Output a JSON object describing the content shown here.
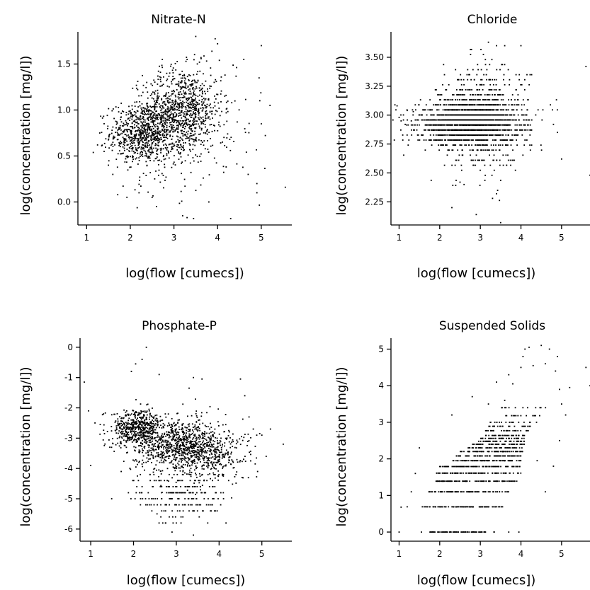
{
  "chart_data": [
    {
      "type": "scatter",
      "title": "Nitrate-N",
      "xlabel": "log(flow [cumecs])",
      "ylabel": "log(concentration [mg/l])",
      "xlim": [
        0.8,
        5.7
      ],
      "ylim": [
        -0.25,
        1.85
      ],
      "xticks": [
        1,
        2,
        3,
        4,
        5
      ],
      "yticks": [
        0.0,
        0.5,
        1.0,
        1.5
      ],
      "ytick_labels": [
        "0.0",
        "0.5",
        "1.0",
        "1.5"
      ],
      "grid": false,
      "clusters": [
        {
          "cx": 2.3,
          "cy": 0.75,
          "sx": 0.38,
          "sy": 0.16,
          "n": 700
        },
        {
          "cx": 3.2,
          "cy": 1.02,
          "sx": 0.45,
          "sy": 0.22,
          "n": 850
        },
        {
          "cx": 2.8,
          "cy": 0.6,
          "sx": 0.55,
          "sy": 0.25,
          "n": 180
        },
        {
          "cx": 4.3,
          "cy": 0.95,
          "sx": 0.45,
          "sy": 0.4,
          "n": 45
        }
      ],
      "extra_points": [
        [
          1.3,
          0.75
        ],
        [
          1.25,
          0.62
        ],
        [
          1.4,
          0.55
        ],
        [
          1.5,
          0.4
        ],
        [
          1.6,
          0.3
        ],
        [
          2.2,
          0.1
        ],
        [
          2.5,
          0.05
        ],
        [
          2.6,
          -0.05
        ],
        [
          3.2,
          -0.15
        ],
        [
          3.3,
          -0.17
        ],
        [
          3.45,
          -0.18
        ],
        [
          4.3,
          -0.18
        ],
        [
          3.8,
          0.0
        ],
        [
          4.7,
          0.3
        ],
        [
          4.9,
          0.2
        ],
        [
          5.2,
          1.05
        ],
        [
          5.0,
          1.7
        ],
        [
          4.0,
          1.72
        ],
        [
          3.5,
          1.8
        ],
        [
          5.55,
          0.16
        ],
        [
          4.9,
          0.1
        ],
        [
          5.0,
          0.85
        ],
        [
          4.6,
          1.55
        ]
      ]
    },
    {
      "type": "scatter",
      "title": "Chloride",
      "xlabel": "log(flow [cumecs])",
      "ylabel": "log(concentration [mg/l])",
      "xlim": [
        0.8,
        5.7
      ],
      "ylim": [
        2.05,
        3.72
      ],
      "xticks": [
        1,
        2,
        3,
        4,
        5
      ],
      "yticks": [
        2.25,
        2.5,
        2.75,
        3.0,
        3.25,
        3.5
      ],
      "ytick_labels": [
        "2.25",
        "2.50",
        "2.75",
        "3.00",
        "3.25",
        "3.50"
      ],
      "grid": false,
      "quantize": 0.0435,
      "clusters": [
        {
          "cx": 2.7,
          "cy": 2.93,
          "sx": 0.6,
          "sy": 0.09,
          "n": 1600
        },
        {
          "cx": 3.1,
          "cy": 2.98,
          "sx": 0.55,
          "sy": 0.22,
          "n": 650
        }
      ],
      "extra_points": [
        [
          0.95,
          3.08
        ],
        [
          1.0,
          2.98
        ],
        [
          1.05,
          2.95
        ],
        [
          1.2,
          3.04
        ],
        [
          1.15,
          2.92
        ],
        [
          1.3,
          2.95
        ],
        [
          1.35,
          3.03
        ],
        [
          5.6,
          3.42
        ],
        [
          5.7,
          2.48
        ],
        [
          4.9,
          2.85
        ],
        [
          4.8,
          2.92
        ],
        [
          5.0,
          2.62
        ],
        [
          3.2,
          3.63
        ],
        [
          3.4,
          3.6
        ],
        [
          3.6,
          3.6
        ],
        [
          4.0,
          3.6
        ],
        [
          2.3,
          2.2
        ],
        [
          2.9,
          2.14
        ],
        [
          3.5,
          2.07
        ],
        [
          3.3,
          2.28
        ],
        [
          3.4,
          2.32
        ],
        [
          2.6,
          2.4
        ],
        [
          2.5,
          2.42
        ]
      ]
    },
    {
      "type": "scatter",
      "title": "Phosphate-P",
      "xlabel": "log(flow [cumecs])",
      "ylabel": "log(concentration [mg/l])",
      "xlim": [
        0.75,
        5.7
      ],
      "ylim": [
        -6.4,
        0.3
      ],
      "xticks": [
        1,
        2,
        3,
        4,
        5
      ],
      "yticks": [
        -6,
        -5,
        -4,
        -3,
        -2,
        -1,
        0
      ],
      "ytick_labels": [
        "-6",
        "-5",
        "-4",
        "-3",
        "-2",
        "-1",
        "0"
      ],
      "grid": false,
      "clusters": [
        {
          "cx": 2.1,
          "cy": -2.65,
          "sx": 0.3,
          "sy": 0.3,
          "n": 500
        },
        {
          "cx": 3.05,
          "cy": -3.2,
          "sx": 0.55,
          "sy": 0.45,
          "n": 900
        },
        {
          "cx": 3.8,
          "cy": -3.6,
          "sx": 0.5,
          "sy": 0.4,
          "n": 250
        }
      ],
      "quant_clusters": [
        {
          "cx": 3.1,
          "cy": -4.9,
          "sx": 0.55,
          "sy": 0.45,
          "n": 230,
          "q": 0.2
        }
      ],
      "extra_points": [
        [
          0.85,
          -1.15
        ],
        [
          0.95,
          -2.1
        ],
        [
          1.0,
          -3.9
        ],
        [
          1.1,
          -2.5
        ],
        [
          1.3,
          -2.2
        ],
        [
          2.3,
          0.0
        ],
        [
          2.05,
          -0.55
        ],
        [
          2.2,
          -0.4
        ],
        [
          1.95,
          -0.8
        ],
        [
          2.6,
          -0.9
        ],
        [
          3.4,
          -1.0
        ],
        [
          3.6,
          -1.05
        ],
        [
          3.3,
          -1.35
        ],
        [
          4.5,
          -1.05
        ],
        [
          4.6,
          -1.6
        ],
        [
          4.7,
          -2.3
        ],
        [
          4.8,
          -2.7
        ],
        [
          5.0,
          -2.9
        ],
        [
          5.5,
          -3.2
        ],
        [
          5.1,
          -3.6
        ],
        [
          4.9,
          -4.1
        ],
        [
          2.9,
          -6.1
        ],
        [
          3.4,
          -6.2
        ],
        [
          3.0,
          -5.8
        ],
        [
          2.55,
          -5.5
        ],
        [
          3.8,
          -5.4
        ],
        [
          5.2,
          -2.7
        ],
        [
          4.95,
          -2.85
        ]
      ]
    },
    {
      "type": "scatter",
      "title": "Suspended Solids",
      "xlabel": "log(flow [cumecs])",
      "ylabel": "log(concentration [mg/l])",
      "xlim": [
        0.8,
        5.7
      ],
      "ylim": [
        -0.25,
        5.3
      ],
      "xticks": [
        1,
        2,
        3,
        4,
        5
      ],
      "yticks": [
        0,
        1,
        2,
        3,
        4,
        5
      ],
      "ytick_labels": [
        "0",
        "1",
        "2",
        "3",
        "4",
        "5"
      ],
      "grid": false,
      "rows": [
        {
          "y": 0.0,
          "x0": 1.75,
          "x1": 3.35,
          "n": 70
        },
        {
          "y": 0.69,
          "x0": 1.55,
          "x1": 3.55,
          "n": 85
        },
        {
          "y": 1.1,
          "x0": 1.65,
          "x1": 3.7,
          "n": 85
        },
        {
          "y": 1.39,
          "x0": 1.8,
          "x1": 3.9,
          "n": 85
        },
        {
          "y": 1.61,
          "x0": 1.9,
          "x1": 4.0,
          "n": 85
        },
        {
          "y": 1.79,
          "x0": 2.0,
          "x1": 4.0,
          "n": 85
        },
        {
          "y": 1.95,
          "x0": 2.3,
          "x1": 4.0,
          "n": 75
        },
        {
          "y": 2.08,
          "x0": 2.4,
          "x1": 4.0,
          "n": 70
        },
        {
          "y": 2.2,
          "x0": 2.5,
          "x1": 4.05,
          "n": 65
        },
        {
          "y": 2.3,
          "x0": 2.7,
          "x1": 4.05,
          "n": 55
        },
        {
          "y": 2.4,
          "x0": 2.8,
          "x1": 4.1,
          "n": 50
        },
        {
          "y": 2.48,
          "x0": 2.9,
          "x1": 4.1,
          "n": 40
        },
        {
          "y": 2.56,
          "x0": 3.0,
          "x1": 4.1,
          "n": 35
        },
        {
          "y": 2.64,
          "x0": 3.1,
          "x1": 4.1,
          "n": 30
        },
        {
          "y": 2.77,
          "x0": 3.1,
          "x1": 4.2,
          "n": 25
        },
        {
          "y": 2.89,
          "x0": 3.2,
          "x1": 4.3,
          "n": 22
        },
        {
          "y": 3.0,
          "x0": 3.2,
          "x1": 4.4,
          "n": 18
        },
        {
          "y": 3.18,
          "x0": 3.3,
          "x1": 4.6,
          "n": 14
        },
        {
          "y": 3.4,
          "x0": 3.5,
          "x1": 4.7,
          "n": 12
        }
      ],
      "extra_points": [
        [
          1.0,
          0.0
        ],
        [
          1.05,
          0.68
        ],
        [
          1.2,
          0.69
        ],
        [
          1.3,
          1.1
        ],
        [
          1.4,
          1.6
        ],
        [
          1.5,
          2.3
        ],
        [
          1.55,
          0.0
        ],
        [
          3.7,
          0.0
        ],
        [
          3.95,
          0.0
        ],
        [
          3.7,
          4.3
        ],
        [
          3.8,
          4.05
        ],
        [
          4.0,
          4.5
        ],
        [
          4.05,
          4.8
        ],
        [
          4.1,
          5.0
        ],
        [
          4.2,
          5.05
        ],
        [
          4.3,
          4.55
        ],
        [
          4.5,
          5.1
        ],
        [
          4.6,
          4.6
        ],
        [
          4.7,
          5.0
        ],
        [
          4.9,
          4.8
        ],
        [
          4.85,
          4.4
        ],
        [
          5.0,
          3.5
        ],
        [
          5.1,
          3.2
        ],
        [
          5.6,
          4.5
        ],
        [
          5.7,
          4.0
        ],
        [
          4.6,
          1.1
        ],
        [
          4.4,
          1.95
        ],
        [
          4.8,
          1.8
        ],
        [
          4.95,
          2.5
        ],
        [
          2.8,
          3.7
        ],
        [
          3.2,
          3.5
        ],
        [
          3.4,
          4.1
        ],
        [
          3.6,
          3.6
        ],
        [
          2.3,
          3.2
        ],
        [
          4.95,
          3.9
        ],
        [
          5.2,
          3.95
        ]
      ]
    }
  ]
}
